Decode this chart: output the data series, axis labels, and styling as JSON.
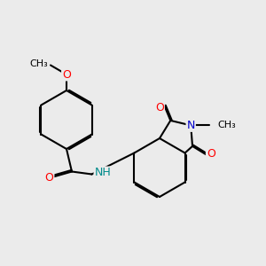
{
  "background_color": "#ebebeb",
  "bond_color": "#000000",
  "bond_width": 1.5,
  "atom_colors": {
    "O": "#ff0000",
    "N": "#0000cd",
    "NH": "#008b8b",
    "C": "#000000"
  },
  "font_size": 9,
  "dbo": 0.055
}
